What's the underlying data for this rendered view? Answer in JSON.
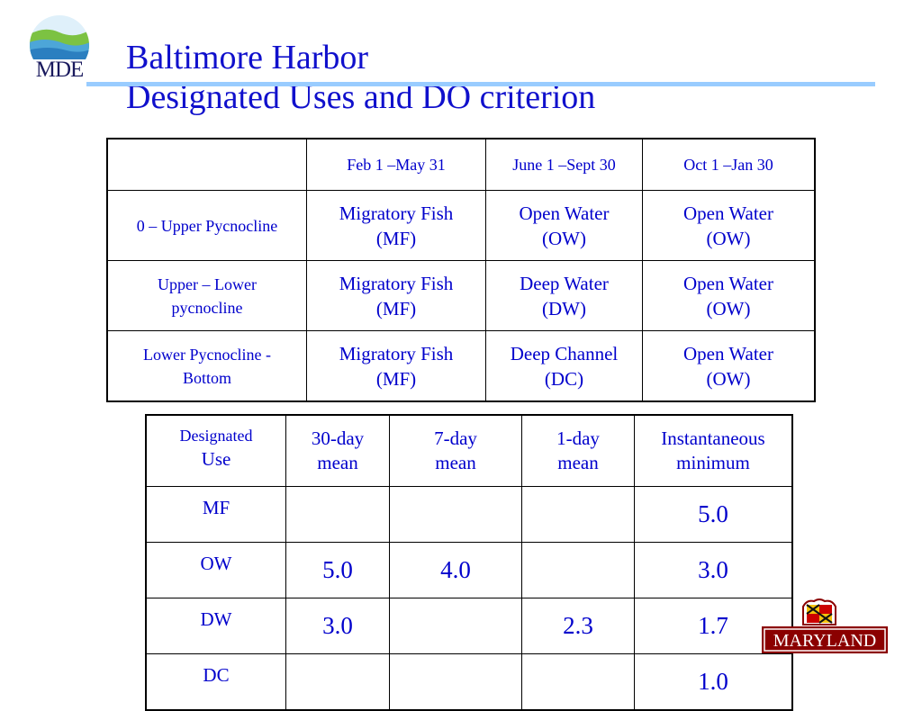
{
  "logo": {
    "text": "MDE"
  },
  "title": {
    "line1": "Baltimore Harbor",
    "line2": "Designated Uses and DO criterion"
  },
  "seasons_table": {
    "headers": [
      "",
      "Feb 1 –May 31",
      "June 1 –Sept 30",
      "Oct 1 –Jan 30"
    ],
    "rows": [
      {
        "depth": "0 – Upper Pycnocline",
        "cells": [
          [
            "Migratory Fish",
            "(MF)"
          ],
          [
            "Open Water",
            "(OW)"
          ],
          [
            "Open Water",
            "(OW)"
          ]
        ]
      },
      {
        "depth": [
          "Upper – Lower",
          "pycnocline"
        ],
        "cells": [
          [
            "Migratory Fish",
            "(MF)"
          ],
          [
            "Deep Water",
            "(DW)"
          ],
          [
            "Open Water",
            "(OW)"
          ]
        ]
      },
      {
        "depth": [
          "Lower Pycnocline -",
          "Bottom"
        ],
        "cells": [
          [
            "Migratory Fish",
            "(MF)"
          ],
          [
            "Deep Channel",
            "(DC)"
          ],
          [
            "Open Water",
            "(OW)"
          ]
        ]
      }
    ]
  },
  "criteria_table": {
    "headers": [
      [
        "Designated",
        "Use"
      ],
      [
        "30-day",
        "mean"
      ],
      [
        "7-day",
        "mean"
      ],
      [
        "1-day",
        "mean"
      ],
      [
        "Instantaneous",
        "minimum"
      ]
    ],
    "rows": [
      {
        "use": "MF",
        "values": [
          "",
          "",
          "",
          "5.0"
        ]
      },
      {
        "use": "OW",
        "values": [
          "5.0",
          "4.0",
          "",
          "3.0"
        ]
      },
      {
        "use": "DW",
        "values": [
          "3.0",
          "",
          "2.3",
          "1.7"
        ]
      },
      {
        "use": "DC",
        "values": [
          "",
          "",
          "",
          "1.0"
        ]
      }
    ]
  },
  "state_logo": {
    "text": "MARYLAND"
  },
  "colors": {
    "text": "#0000cc",
    "rule": "#99ccff"
  }
}
